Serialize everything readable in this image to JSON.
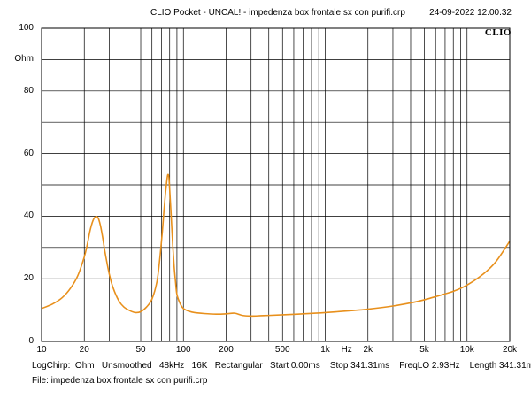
{
  "header": {
    "title": "CLIO Pocket - UNCAL! - impedenza box frontale sx con purifi.crp",
    "date": "24-09-2022 12.00.32"
  },
  "brand": "CLIO",
  "footer": {
    "params": "LogChirp:  Ohm   Unsmoothed   48kHz   16K   Rectangular   Start 0.00ms    Stop 341.31ms    FreqLO 2.93Hz    Length 341.31ms",
    "file": "File: impedenza box frontale sx con purifi.crp"
  },
  "colors": {
    "curve": "#e8901c",
    "grid": "#000000",
    "background": "#ffffff"
  },
  "chart_data": {
    "type": "line",
    "title": "",
    "xlabel": "Hz",
    "ylabel": "Ohm",
    "xscale": "log",
    "xlim": [
      10,
      20000
    ],
    "ylim": [
      0,
      100
    ],
    "grid": true,
    "y_ticks": [
      {
        "value": 100,
        "label": "100"
      },
      {
        "value": 90,
        "label": "Ohm"
      },
      {
        "value": 80,
        "label": "80"
      },
      {
        "value": 60,
        "label": "60"
      },
      {
        "value": 40,
        "label": "40"
      },
      {
        "value": 20,
        "label": "20"
      },
      {
        "value": 0,
        "label": "0"
      }
    ],
    "x_ticks": [
      {
        "value": 10,
        "label": "10"
      },
      {
        "value": 20,
        "label": "20"
      },
      {
        "value": 50,
        "label": "50"
      },
      {
        "value": 100,
        "label": "100"
      },
      {
        "value": 200,
        "label": "200"
      },
      {
        "value": 500,
        "label": "500"
      },
      {
        "value": 1000,
        "label": "1k"
      },
      {
        "value": 1414,
        "label": "Hz"
      },
      {
        "value": 2000,
        "label": "2k"
      },
      {
        "value": 5000,
        "label": "5k"
      },
      {
        "value": 10000,
        "label": "10k"
      },
      {
        "value": 20000,
        "label": "20k"
      }
    ],
    "x_gridlines": [
      10,
      20,
      30,
      40,
      50,
      60,
      70,
      80,
      90,
      100,
      200,
      300,
      400,
      500,
      600,
      700,
      800,
      900,
      1000,
      2000,
      3000,
      4000,
      5000,
      6000,
      7000,
      8000,
      9000,
      10000,
      20000
    ],
    "y_gridlines": [
      0,
      10,
      20,
      30,
      40,
      50,
      60,
      70,
      80,
      90,
      100
    ],
    "series": [
      {
        "color": "#e8901c",
        "x": [
          10,
          12,
          14,
          16,
          18,
          20,
          21,
          22,
          23,
          24,
          25,
          26,
          27,
          28,
          30,
          32,
          35,
          38,
          42,
          46,
          50,
          55,
          60,
          65,
          68,
          71,
          73,
          75,
          77,
          78,
          79,
          80,
          82,
          84,
          86,
          88,
          90,
          95,
          100,
          110,
          120,
          140,
          170,
          200,
          230,
          260,
          300,
          350,
          400,
          500,
          700,
          1000,
          1500,
          2000,
          3000,
          4000,
          5000,
          6000,
          8000,
          10000,
          13000,
          16000,
          20000
        ],
        "values": [
          10.5,
          12,
          14,
          17,
          21,
          27,
          31,
          35.5,
          38.5,
          39.8,
          39.5,
          37,
          33,
          28.5,
          21.5,
          17,
          13,
          11,
          9.8,
          9.2,
          9.5,
          11,
          13.5,
          19,
          26,
          35,
          42,
          48,
          52.5,
          53.3,
          52.5,
          48.5,
          40,
          31,
          24,
          19,
          15,
          12,
          10.5,
          9.6,
          9.2,
          8.9,
          8.7,
          8.8,
          9,
          8.3,
          8.1,
          8.2,
          8.3,
          8.5,
          8.8,
          9.2,
          9.8,
          10.3,
          11.3,
          12.3,
          13.3,
          14.3,
          16,
          18,
          21.5,
          25.5,
          32
        ]
      }
    ]
  }
}
